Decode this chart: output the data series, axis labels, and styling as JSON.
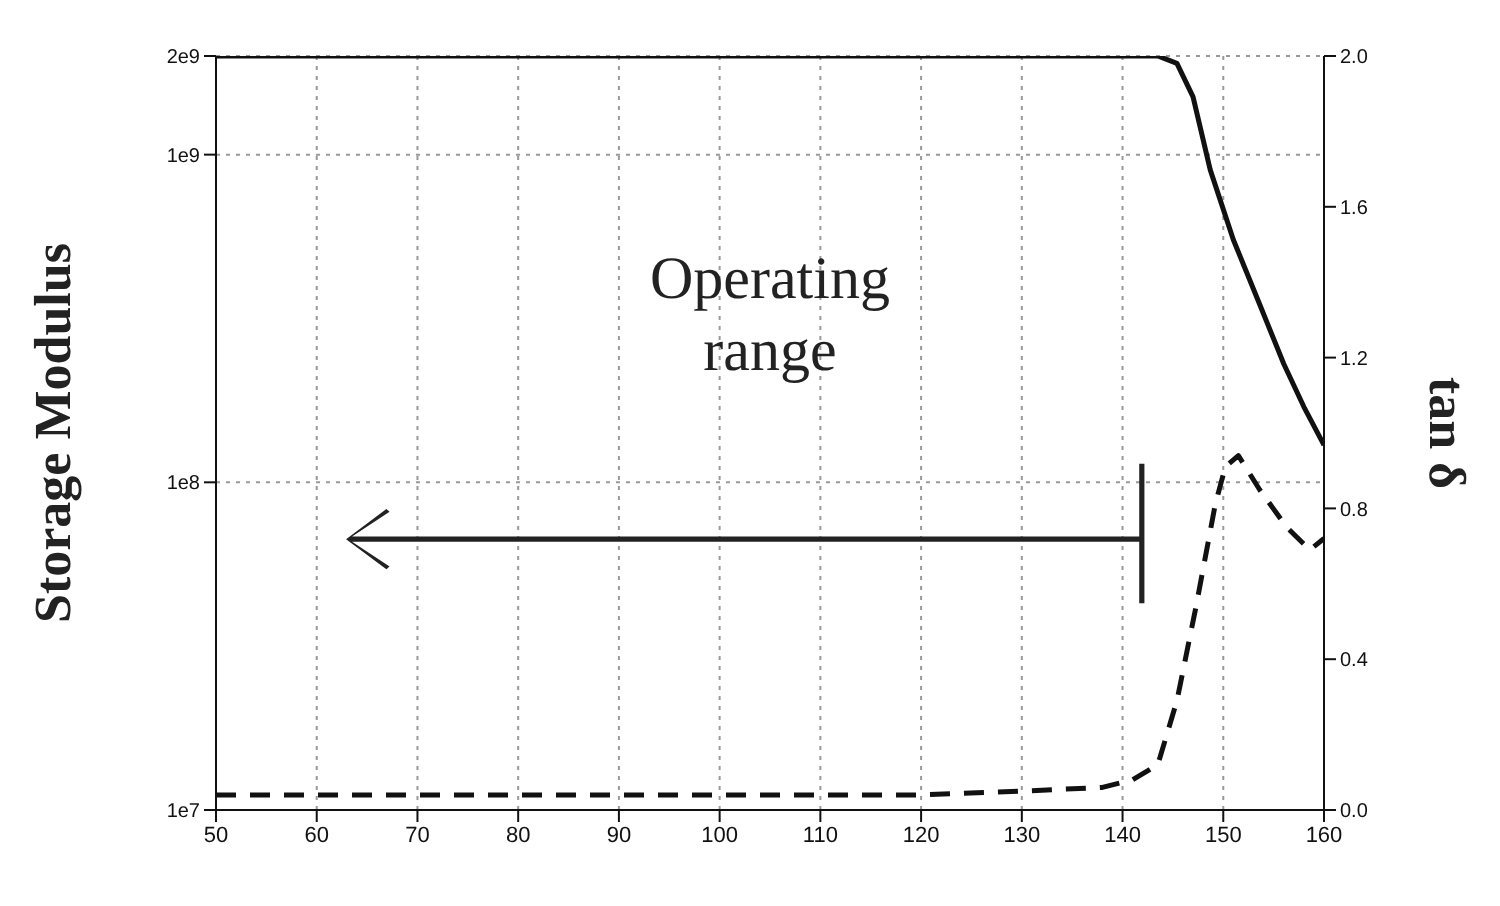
{
  "chart_data": {
    "type": "line",
    "ylabel": "Storage Modulus",
    "y2label": "tan δ",
    "annotations": [
      "Operating range"
    ],
    "xlim": [
      50,
      160
    ],
    "xticks": [
      50,
      60,
      70,
      80,
      90,
      100,
      110,
      120,
      130,
      140,
      150,
      160
    ],
    "log": "y",
    "ylim": [
      10000000,
      2000000000
    ],
    "yticks": [
      {
        "value": 10000000,
        "label": "1e7"
      },
      {
        "value": 100000000,
        "label": "1e8"
      },
      {
        "value": 1000000000,
        "label": "1e9"
      },
      {
        "value": 2000000000,
        "label": "2e9"
      }
    ],
    "y2lim": [
      0,
      2
    ],
    "y2ticks": [
      {
        "value": 0,
        "label": "0.0"
      },
      {
        "value": 0.4,
        "label": "0.4"
      },
      {
        "value": 0.8,
        "label": "0.8"
      },
      {
        "value": 1.2,
        "label": "1.2"
      },
      {
        "value": 1.6,
        "label": "1.6"
      },
      {
        "value": 2,
        "label": "2.0"
      }
    ],
    "grid": true,
    "legend": false,
    "marker": "none",
    "series": [
      {
        "color": "#111111",
        "line_style": "solid",
        "x": [
          50,
          70,
          90,
          110,
          130,
          142,
          143.5,
          145.4,
          147,
          148.7,
          151,
          153.6,
          156,
          158,
          160
        ],
        "values": [
          2000000000,
          2000000000,
          2000000000,
          2000000000,
          2000000000,
          2000000000,
          2000000000,
          1900000000,
          1500000000,
          900000000,
          550000000,
          350000000,
          230000000,
          170000000,
          130000000
        ]
      },
      {
        "color": "#111111",
        "line_style": "dashed",
        "axis": "y2",
        "x": [
          50,
          120,
          130,
          138,
          141,
          143.5,
          145.4,
          147.3,
          149.2,
          150.2,
          151.5,
          153.6,
          156.3,
          158.6,
          160
        ],
        "values": [
          0.04,
          0.04,
          0.05,
          0.06,
          0.08,
          0.12,
          0.29,
          0.54,
          0.81,
          0.91,
          0.94,
          0.85,
          0.75,
          0.69,
          0.72
        ]
      }
    ]
  }
}
